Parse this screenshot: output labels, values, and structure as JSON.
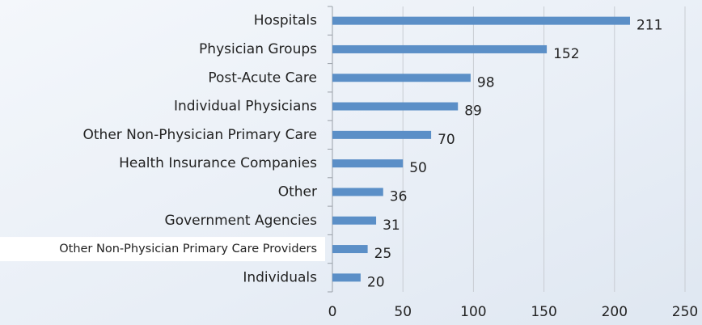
{
  "chart_data": {
    "type": "barh",
    "categories": [
      "Hospitals",
      "Physician Groups",
      "Post-Acute Care",
      "Individual Physicians",
      "Other Non-Physician Primary Care",
      "Health Insurance Companies",
      "Other",
      "Government Agencies",
      "Other Non-Physician Primary Care Providers",
      "Individuals"
    ],
    "values": [
      211,
      152,
      98,
      89,
      70,
      50,
      36,
      31,
      25,
      20
    ],
    "color": "#5b8fc7",
    "xlim": [
      0,
      250
    ],
    "xticks": [
      0,
      50,
      100,
      150,
      200,
      250
    ],
    "grid": true
  }
}
